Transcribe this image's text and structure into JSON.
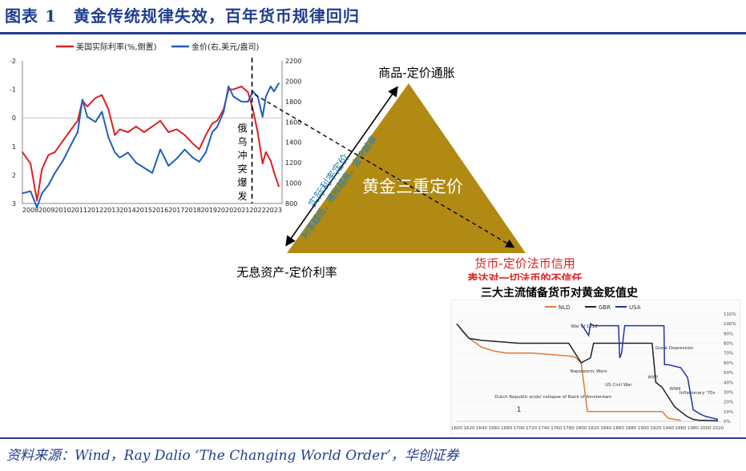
{
  "title": "图表 1　黄金传统规律失效，百年货币规律回归",
  "source": "资料来源：Wind，Ray Dalio ‘The Changing World Order’，华创证券",
  "colors": {
    "title": "#1f3f8f",
    "red": "#e02020",
    "blue": "#1f5fbf",
    "gold": "#b08a12",
    "nld": "#e07b39",
    "gbr": "#222222",
    "usa": "#2233aa"
  },
  "chart_data": [
    {
      "type": "line",
      "legend": {
        "items": [
          "美国实际利率(%,倒置)",
          "金价(右,美元/盎司)"
        ],
        "placement": "top"
      },
      "x_ticks": [
        "2008",
        "2009",
        "2010",
        "2011",
        "2012",
        "2013",
        "2014",
        "2015",
        "2016",
        "2017",
        "2018",
        "2019",
        "2020",
        "2021",
        "2022",
        "2023"
      ],
      "y_left": {
        "ticks": [
          "-2",
          "-1",
          "0",
          "1",
          "2",
          "3"
        ],
        "range": [
          -2,
          3
        ],
        "inverted": true
      },
      "y_right": {
        "ticks": [
          "800",
          "1000",
          "1200",
          "1400",
          "1600",
          "1800",
          "2000",
          "2200"
        ],
        "range": [
          800,
          2200
        ]
      },
      "annotation": "俄乌冲突爆发",
      "series": [
        {
          "name": "美国实际利率(%,倒置)",
          "axis": "left",
          "x": [
            2008.0,
            2008.5,
            2008.9,
            2009.2,
            2009.6,
            2010.0,
            2010.5,
            2011.0,
            2011.4,
            2011.7,
            2012.0,
            2012.5,
            2012.9,
            2013.3,
            2013.7,
            2014.0,
            2014.5,
            2015.0,
            2015.5,
            2016.0,
            2016.5,
            2017.0,
            2017.5,
            2018.0,
            2018.5,
            2018.9,
            2019.3,
            2019.7,
            2020.0,
            2020.4,
            2020.7,
            2021.0,
            2021.5,
            2021.9,
            2022.2,
            2022.5,
            2022.8,
            2023.0,
            2023.3,
            2023.5,
            2023.8
          ],
          "y": [
            1.2,
            1.6,
            2.9,
            1.8,
            1.3,
            1.2,
            0.8,
            0.4,
            0.1,
            -0.6,
            -0.4,
            -0.7,
            -0.8,
            -0.3,
            0.6,
            0.4,
            0.5,
            0.3,
            0.5,
            0.3,
            0.1,
            0.5,
            0.4,
            0.6,
            0.9,
            1.1,
            0.6,
            0.2,
            0.1,
            -0.3,
            -1.0,
            -1.0,
            -1.1,
            -0.9,
            -0.3,
            0.5,
            1.6,
            1.2,
            1.5,
            1.9,
            2.4
          ]
        },
        {
          "name": "金价(右,美元/盎司)",
          "axis": "right",
          "x": [
            2008.0,
            2008.5,
            2008.9,
            2009.2,
            2009.6,
            2010.0,
            2010.5,
            2011.0,
            2011.4,
            2011.7,
            2012.0,
            2012.5,
            2012.9,
            2013.3,
            2013.7,
            2014.0,
            2014.5,
            2015.0,
            2015.5,
            2016.0,
            2016.5,
            2017.0,
            2017.5,
            2018.0,
            2018.5,
            2018.9,
            2019.3,
            2019.7,
            2020.0,
            2020.4,
            2020.7,
            2021.0,
            2021.5,
            2021.9,
            2022.2,
            2022.5,
            2022.8,
            2023.0,
            2023.3,
            2023.5,
            2023.8
          ],
          "y": [
            900,
            920,
            760,
            900,
            980,
            1100,
            1220,
            1380,
            1500,
            1820,
            1650,
            1600,
            1700,
            1450,
            1300,
            1250,
            1300,
            1200,
            1150,
            1100,
            1330,
            1170,
            1240,
            1330,
            1250,
            1210,
            1300,
            1500,
            1550,
            1700,
            1950,
            1850,
            1800,
            1800,
            1900,
            1850,
            1650,
            1850,
            1950,
            1900,
            1980
          ]
        }
      ]
    },
    {
      "type": "diagram",
      "center_label": "黄金三重定价",
      "vertices": {
        "top": "商品-定价通胀",
        "left": "无息资产-定价利率",
        "right": "货币-定价法币信用"
      },
      "right_sub": "表达对一切法币的不信任",
      "edge_labels": [
        "实际利率定价",
        "利率越低，通胀越高，金价越高"
      ]
    },
    {
      "type": "line",
      "title": "三大主流储备货币对黄金贬值史",
      "legend": {
        "items": [
          "NLD",
          "GBR",
          "USA"
        ],
        "placement": "top"
      },
      "x_ticks": [
        "1600",
        "1620",
        "1640",
        "1660",
        "1680",
        "1700",
        "1720",
        "1740",
        "1760",
        "1780",
        "1800",
        "1820",
        "1840",
        "1860",
        "1880",
        "1900",
        "1920",
        "1940",
        "1960",
        "1980",
        "2000",
        "2020"
      ],
      "y_ticks": [
        "0%",
        "10%",
        "20%",
        "30%",
        "40%",
        "50%",
        "60%",
        "70%",
        "80%",
        "90%",
        "100%",
        "110%"
      ],
      "annotations": [
        "War of 1812",
        "Great Depression",
        "Napoleonic Wars",
        "US Civil War",
        "WWI",
        "WWII",
        "Inflationary '70s",
        "Dutch Republic ends/ collapse of Bank of Amsterdam",
        "1"
      ],
      "series": [
        {
          "name": "NLD",
          "x": [
            1600,
            1620,
            1640,
            1660,
            1680,
            1700,
            1720,
            1740,
            1760,
            1780,
            1790,
            1800,
            1810,
            1820,
            1840,
            1860,
            1880,
            1900,
            1920,
            1930,
            1940,
            1960
          ],
          "y": [
            100,
            85,
            76,
            72,
            70,
            70,
            70,
            69,
            68,
            67,
            66,
            60,
            10,
            10,
            10,
            10,
            10,
            10,
            10,
            10,
            3,
            1
          ]
        },
        {
          "name": "GBR",
          "x": [
            1600,
            1610,
            1620,
            1640,
            1660,
            1680,
            1700,
            1720,
            1740,
            1760,
            1780,
            1800,
            1815,
            1820,
            1840,
            1860,
            1880,
            1900,
            1914,
            1920,
            1930,
            1940,
            1950,
            1960,
            1970,
            1980,
            1990,
            2000,
            2020
          ],
          "y": [
            100,
            92,
            85,
            83,
            82,
            81,
            80,
            80,
            80,
            80,
            80,
            60,
            65,
            80,
            80,
            80,
            80,
            80,
            80,
            40,
            35,
            25,
            15,
            10,
            5,
            2,
            1,
            1,
            0.5
          ]
        },
        {
          "name": "USA",
          "x": [
            1800,
            1812,
            1815,
            1820,
            1840,
            1860,
            1862,
            1865,
            1870,
            1900,
            1920,
            1933,
            1934,
            1940,
            1960,
            1971,
            1980,
            1990,
            2000,
            2020
          ],
          "y": [
            100,
            88,
            100,
            98,
            98,
            98,
            65,
            70,
            98,
            98,
            98,
            98,
            58,
            58,
            55,
            45,
            12,
            8,
            5,
            2
          ]
        }
      ]
    }
  ]
}
